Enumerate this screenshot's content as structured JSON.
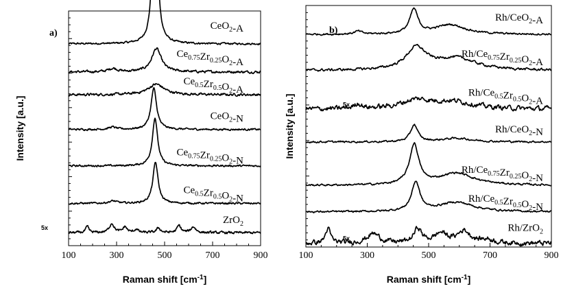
{
  "chart_data": [
    {
      "type": "line",
      "panel": "a)",
      "xlabel": "Raman shift [cm⁻¹]",
      "xlabel_main": "Raman shift [cm",
      "xlabel_exp": "-1",
      "xlabel_close": "]",
      "ylabel": "Intensity [a.u.]",
      "xlim": [
        100,
        900
      ],
      "xticks": [
        100,
        300,
        500,
        700,
        900
      ],
      "y_units": "arbitrary, vertically offset traces",
      "series": [
        {
          "name": "CeO2-A",
          "label_parts": [
            [
              "Ce",
              ""
            ],
            [
              "O",
              "2"
            ],
            [
              "-A",
              ""
            ]
          ],
          "baseline": 0.86,
          "noise": 0.003,
          "peaks": [
            {
              "x": 460,
              "height": 0.76,
              "width": 11
            }
          ]
        },
        {
          "name": "Ce0.75Zr0.25O2-A",
          "label_parts": [
            [
              "Ce",
              ""
            ],
            [
              "0.75",
              "sub"
            ],
            [
              "Zr",
              ""
            ],
            [
              "0.25",
              "sub"
            ],
            [
              "O",
              ""
            ],
            [
              "2",
              "sub"
            ],
            [
              "-A",
              ""
            ]
          ],
          "baseline": 0.74,
          "noise": 0.004,
          "peaks": [
            {
              "x": 466,
              "height": 0.1,
              "width": 24
            },
            {
              "x": 285,
              "height": 0.015,
              "width": 22
            }
          ]
        },
        {
          "name": "Ce0.5Zr0.5O2-A",
          "label_parts": [
            [
              "Ce",
              ""
            ],
            [
              "0.5",
              "sub"
            ],
            [
              "Zr",
              ""
            ],
            [
              "0.5",
              "sub"
            ],
            [
              "O",
              ""
            ],
            [
              "2",
              "sub"
            ],
            [
              "-A",
              ""
            ]
          ],
          "baseline": 0.643,
          "noise": 0.004,
          "peaks": [
            {
              "x": 465,
              "height": 0.045,
              "width": 40
            }
          ]
        },
        {
          "name": "CeO2-N",
          "label_parts": [
            [
              "Ce",
              ""
            ],
            [
              "O",
              "2"
            ],
            [
              "-N",
              ""
            ]
          ],
          "baseline": 0.495,
          "noise": 0.003,
          "peaks": [
            {
              "x": 455,
              "height": 0.175,
              "width": 14
            },
            {
              "x": 283,
              "height": 0.01,
              "width": 18
            }
          ]
        },
        {
          "name": "Ce0.75Zr0.25O2-N",
          "label_parts": [
            [
              "Ce",
              ""
            ],
            [
              "0.75",
              "sub"
            ],
            [
              "Zr",
              ""
            ],
            [
              "0.25",
              "sub"
            ],
            [
              "O",
              ""
            ],
            [
              "2",
              "sub"
            ],
            [
              "-N",
              ""
            ]
          ],
          "baseline": 0.34,
          "noise": 0.003,
          "peaks": [
            {
              "x": 460,
              "height": 0.205,
              "width": 13
            }
          ]
        },
        {
          "name": "Ce0.5Zr0.5O2-N",
          "label_parts": [
            [
              "Ce",
              ""
            ],
            [
              "0.5",
              "sub"
            ],
            [
              "Zr",
              ""
            ],
            [
              "0.5",
              "sub"
            ],
            [
              "O",
              ""
            ],
            [
              "2",
              "sub"
            ],
            [
              "-N",
              ""
            ]
          ],
          "baseline": 0.18,
          "noise": 0.003,
          "peaks": [
            {
              "x": 462,
              "height": 0.175,
              "width": 13
            },
            {
              "x": 285,
              "height": 0.01,
              "width": 20
            }
          ]
        },
        {
          "name": "ZrO2",
          "label_parts": [
            [
              "Zr",
              ""
            ],
            [
              "O",
              "2"
            ]
          ],
          "baseline": 0.055,
          "noise": 0.004,
          "magnification": "5x",
          "peaks": [
            {
              "x": 178,
              "height": 0.025,
              "width": 8
            },
            {
              "x": 280,
              "height": 0.04,
              "width": 12
            },
            {
              "x": 335,
              "height": 0.025,
              "width": 10
            },
            {
              "x": 382,
              "height": 0.015,
              "width": 9
            },
            {
              "x": 475,
              "height": 0.02,
              "width": 10
            },
            {
              "x": 560,
              "height": 0.03,
              "width": 10
            },
            {
              "x": 620,
              "height": 0.025,
              "width": 12
            }
          ]
        }
      ]
    },
    {
      "type": "line",
      "panel": "b)",
      "xlabel": "Raman shift [cm⁻¹]",
      "xlabel_main": "Raman shift [cm",
      "xlabel_exp": "-1",
      "xlabel_close": "]",
      "ylabel": "Intensity [a.u.]",
      "xlim": [
        100,
        900
      ],
      "xticks": [
        100,
        300,
        500,
        700,
        900
      ],
      "y_units": "arbitrary, vertically offset traces",
      "series": [
        {
          "name": "Rh/CeO2-A",
          "label_parts": [
            [
              "Rh/Ce",
              ""
            ],
            [
              "O",
              "2"
            ],
            [
              "-A",
              ""
            ]
          ],
          "baseline": 0.88,
          "noise": 0.003,
          "peaks": [
            {
              "x": 452,
              "height": 0.1,
              "width": 16
            },
            {
              "x": 570,
              "height": 0.04,
              "width": 60
            },
            {
              "x": 270,
              "height": 0.012,
              "width": 15
            }
          ]
        },
        {
          "name": "Rh/Ce0.75Zr0.25O2-A",
          "label_parts": [
            [
              "Rh/Ce",
              ""
            ],
            [
              "0.75",
              "sub"
            ],
            [
              "Zr",
              ""
            ],
            [
              "0.25",
              "sub"
            ],
            [
              "O",
              ""
            ],
            [
              "2",
              "sub"
            ],
            [
              "-A",
              ""
            ]
          ],
          "baseline": 0.73,
          "noise": 0.004,
          "peaks": [
            {
              "x": 460,
              "height": 0.09,
              "width": 40
            },
            {
              "x": 590,
              "height": 0.05,
              "width": 80
            }
          ]
        },
        {
          "name": "Rh/Ce0.5Zr0.5O2-A",
          "label_parts": [
            [
              "Rh/Ce",
              ""
            ],
            [
              "0.5",
              "sub"
            ],
            [
              "Zr",
              ""
            ],
            [
              "0.5",
              "sub"
            ],
            [
              "O",
              ""
            ],
            [
              "2",
              "sub"
            ],
            [
              "-A",
              ""
            ]
          ],
          "baseline": 0.57,
          "noise": 0.008,
          "magnification": "5x",
          "peaks": [
            {
              "x": 270,
              "height": 0.02,
              "width": 15
            },
            {
              "x": 460,
              "height": 0.035,
              "width": 60
            },
            {
              "x": 580,
              "height": 0.03,
              "width": 80
            }
          ]
        },
        {
          "name": "Rh/CeO2-N",
          "label_parts": [
            [
              "Rh/Ce",
              ""
            ],
            [
              "O",
              "2"
            ],
            [
              "-N",
              ""
            ]
          ],
          "baseline": 0.435,
          "noise": 0.003,
          "peaks": [
            {
              "x": 453,
              "height": 0.07,
              "width": 14
            },
            {
              "x": 590,
              "height": 0.015,
              "width": 60
            }
          ]
        },
        {
          "name": "Rh/Ce0.75Zr0.25O2-N",
          "label_parts": [
            [
              "Rh/Ce",
              ""
            ],
            [
              "0.75",
              "sub"
            ],
            [
              "Zr",
              ""
            ],
            [
              "0.25",
              "sub"
            ],
            [
              "O",
              ""
            ],
            [
              "2",
              "sub"
            ],
            [
              "-N",
              ""
            ]
          ],
          "baseline": 0.255,
          "noise": 0.003,
          "peaks": [
            {
              "x": 453,
              "height": 0.165,
              "width": 18
            },
            {
              "x": 590,
              "height": 0.05,
              "width": 70
            }
          ]
        },
        {
          "name": "Rh/Ce0.5Zr0.5O2-N",
          "label_parts": [
            [
              "Rh/Ce",
              ""
            ],
            [
              "0.5",
              "sub"
            ],
            [
              "Zr",
              ""
            ],
            [
              "0.5",
              "sub"
            ],
            [
              "O",
              ""
            ],
            [
              "2",
              "sub"
            ],
            [
              "-N",
              ""
            ]
          ],
          "baseline": 0.145,
          "noise": 0.003,
          "peaks": [
            {
              "x": 458,
              "height": 0.12,
              "width": 16
            },
            {
              "x": 590,
              "height": 0.04,
              "width": 70
            }
          ]
        },
        {
          "name": "Rh/ZrO2",
          "label_parts": [
            [
              "Rh/Zr",
              ""
            ],
            [
              "O",
              "2"
            ]
          ],
          "baseline": 0.015,
          "noise": 0.008,
          "magnification": "5x",
          "peaks": [
            {
              "x": 172,
              "height": 0.06,
              "width": 10
            },
            {
              "x": 320,
              "height": 0.04,
              "width": 25
            },
            {
              "x": 465,
              "height": 0.06,
              "width": 15
            },
            {
              "x": 540,
              "height": 0.04,
              "width": 25
            },
            {
              "x": 615,
              "height": 0.05,
              "width": 25
            },
            {
              "x": 690,
              "height": 0.015,
              "width": 25
            }
          ]
        }
      ]
    }
  ]
}
